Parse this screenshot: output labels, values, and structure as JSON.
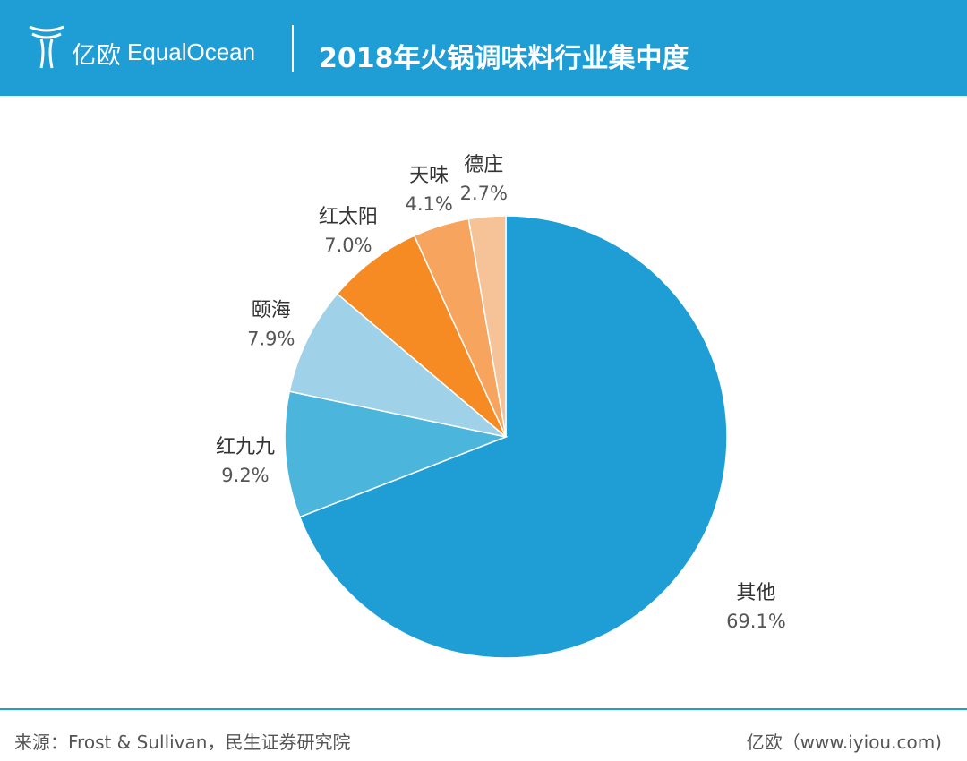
{
  "header": {
    "logo_cn": "亿欧",
    "logo_en": "EqualOcean",
    "title": "2018年火锅调味料行业集中度"
  },
  "colors": {
    "header_bg": "#1f9ed6"
  },
  "chart_data": {
    "type": "pie",
    "title": "2018年火锅调味料行业集中度",
    "slices": [
      {
        "label": "其他",
        "value": 69.1,
        "display": "69.1%",
        "color": "#1f9ed6"
      },
      {
        "label": "红九九",
        "value": 9.2,
        "display": "9.2%",
        "color": "#4bb5dc"
      },
      {
        "label": "颐海",
        "value": 7.9,
        "display": "7.9%",
        "color": "#9fd2e8"
      },
      {
        "label": "红太阳",
        "value": 7.0,
        "display": "7.0%",
        "color": "#f58b22"
      },
      {
        "label": "天味",
        "value": 4.1,
        "display": "4.1%",
        "color": "#f6a45e"
      },
      {
        "label": "德庄",
        "value": 2.7,
        "display": "2.7%",
        "color": "#f6c398"
      }
    ],
    "start": "12 o'clock",
    "direction": "clockwise"
  },
  "footer": {
    "source": "来源：Frost & Sullivan，民生证券研究院",
    "credit": "亿欧（www.iyiou.com)"
  }
}
